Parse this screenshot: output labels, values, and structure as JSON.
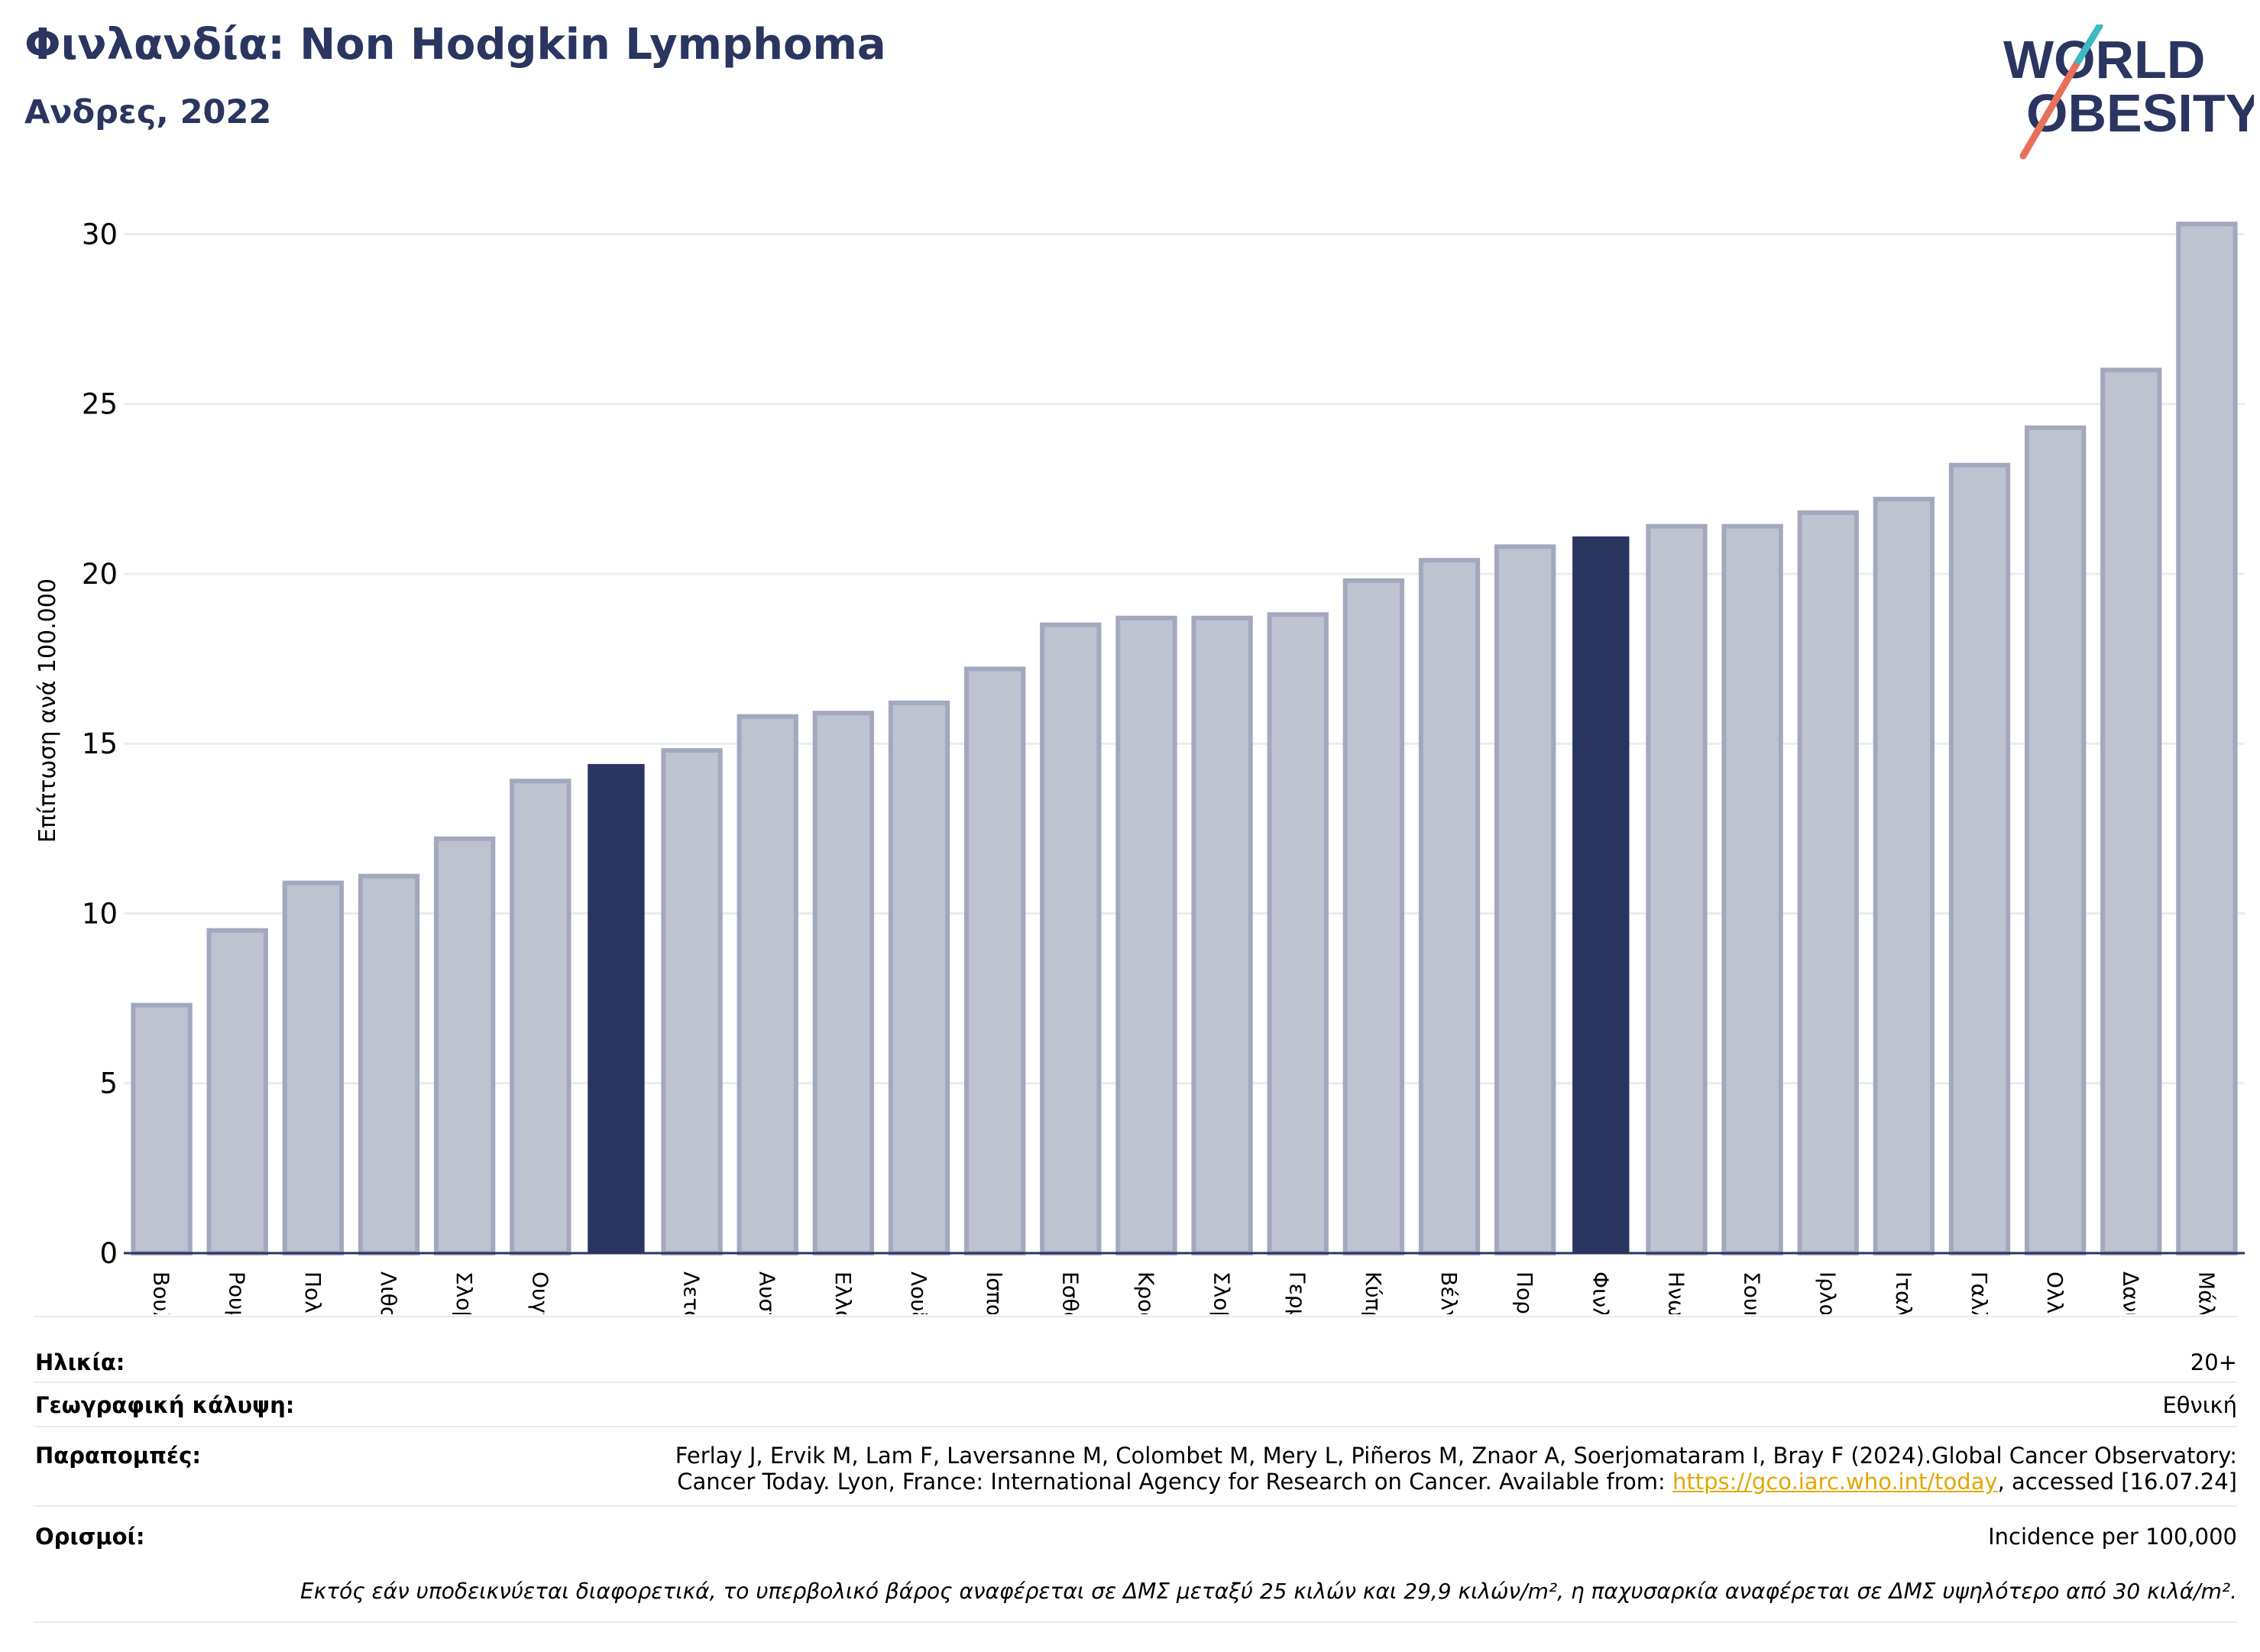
{
  "header": {
    "title": "Φινλανδία: Non Hodgkin Lymphoma",
    "subtitle": "Ανδρες, 2022"
  },
  "logo": {
    "line1": "WORLD",
    "line2": "OBESITY"
  },
  "colors": {
    "bar": "#bfc2cf",
    "bar_edge": "#a3a8be",
    "highlight": "#2a3560",
    "grid": "#e9ecf0",
    "axis": "#2a3560"
  },
  "chart_data": {
    "type": "bar",
    "ylabel": "Επίπτωση ανά 100.000",
    "ylim": [
      0,
      31
    ],
    "yticks": [
      0,
      5,
      10,
      15,
      20,
      25,
      30
    ],
    "grid": true,
    "categories": [
      "Βουλγαρία",
      "Ρουμανία",
      "Πολωνία",
      "Λιθουανία",
      "Σλοβακία",
      "Ουγγαρία",
      "",
      "Λετονία",
      "Αυστρία",
      "Ελλάδα",
      "Λουξεμβούργο",
      "Ισπανία",
      "Εσθονία",
      "Κροατία",
      "Σλοβενία",
      "Γερμανία",
      "Κύπρος",
      "Βέλγιο",
      "Πορτογαλία",
      "Φινλανδία",
      "Ηνωμένο Βασίλειο",
      "Σουηδία",
      "Ιρλανδία",
      "Ιταλία",
      "Γαλλία",
      "Ολλανδία",
      "Δανία",
      "Μάλτα"
    ],
    "values": [
      7.3,
      9.5,
      10.9,
      11.1,
      12.2,
      13.9,
      14.4,
      14.8,
      15.8,
      15.9,
      16.2,
      17.2,
      18.5,
      18.7,
      18.7,
      18.8,
      19.8,
      20.4,
      20.8,
      21.1,
      21.4,
      21.4,
      21.8,
      22.2,
      23.2,
      24.3,
      26.0,
      30.3
    ],
    "highlighted": [
      6,
      19
    ]
  },
  "meta": {
    "age_label": "Ηλικία:",
    "age_value": "20+",
    "coverage_label": "Γεωγραφική κάλυψη:",
    "coverage_value": "Εθνική",
    "refs_label": "Παραπομπές:",
    "refs_line1": "Ferlay J, Ervik M, Lam F, Laversanne M, Colombet M, Mery L, Piñeros M, Znaor A, Soerjomataram I, Bray F (2024).Global Cancer Observatory:",
    "refs_line2_pre": "Cancer Today. Lyon, France: International Agency for Research on Cancer. Available from: ",
    "refs_link": "https://gco.iarc.who.int/today",
    "refs_line2_post": ", accessed [16.07.24]",
    "defs_label": "Ορισμοί:",
    "defs_value": "Incidence per 100,000",
    "footnote": "Εκτός εάν υποδεικνύεται διαφορετικά, το υπερβολικό βάρος αναφέρεται σε ΔΜΣ μεταξύ 25 κιλών και 29,9 κιλών/m², η παχυσαρκία αναφέρεται σε ΔΜΣ υψηλότερο από 30 κιλά/m²."
  }
}
